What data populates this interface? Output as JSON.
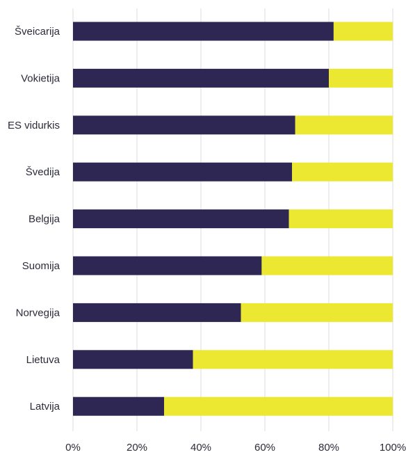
{
  "chart_data": {
    "type": "bar",
    "orientation": "horizontal",
    "stacked": true,
    "categories": [
      "Šveicarija",
      "Vokietija",
      "ES vidurkis",
      "Švedija",
      "Belgija",
      "Suomija",
      "Norvegija",
      "Lietuva",
      "Latvija"
    ],
    "series": [
      {
        "values": [
          81.5,
          80,
          69.5,
          68.5,
          67.5,
          59,
          52.5,
          37.5,
          28.5
        ]
      },
      {
        "values": [
          18.5,
          20,
          30.5,
          31.5,
          32.5,
          41,
          47.5,
          62.5,
          71.5
        ]
      }
    ],
    "x_ticks": [
      "0%",
      "20%",
      "40%",
      "60%",
      "80%",
      "100%"
    ],
    "xlim": [
      0,
      100
    ],
    "grid": true,
    "legend": "none",
    "colors": {
      "series_1": "#2e2753",
      "series_2": "#ece832",
      "grid": "#dcdcdc"
    },
    "title": "",
    "xlabel": "",
    "ylabel": ""
  }
}
